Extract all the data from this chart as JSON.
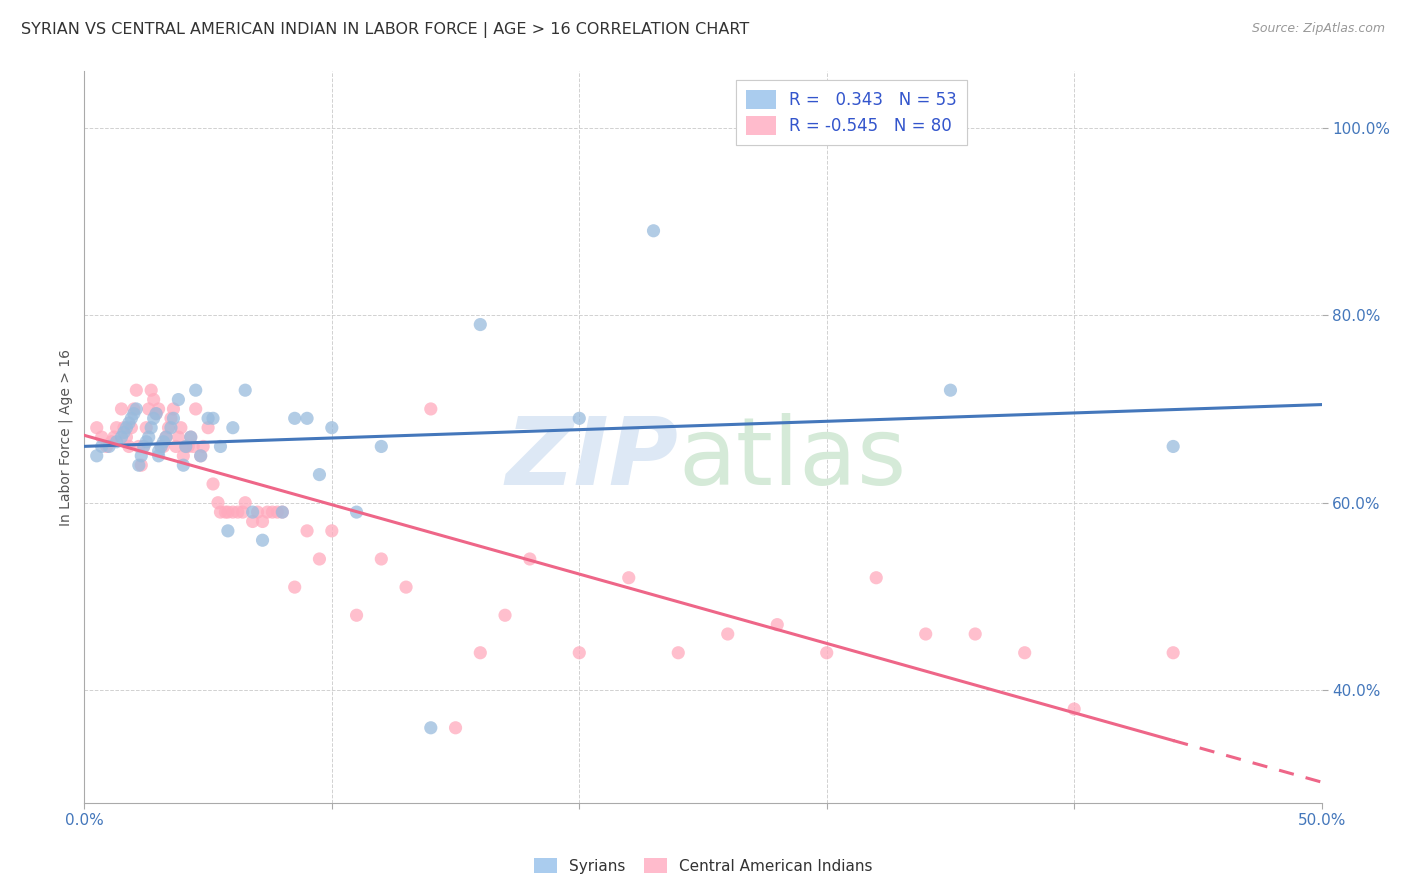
{
  "title": "SYRIAN VS CENTRAL AMERICAN INDIAN IN LABOR FORCE | AGE > 16 CORRELATION CHART",
  "source": "Source: ZipAtlas.com",
  "ylabel": "In Labor Force | Age > 16",
  "xlim": [
    0.0,
    0.5
  ],
  "ylim": [
    0.28,
    1.06
  ],
  "xticks": [
    0.0,
    0.1,
    0.2,
    0.3,
    0.4,
    0.5
  ],
  "yticks": [
    0.4,
    0.6,
    0.8,
    1.0
  ],
  "ytick_labels": [
    "40.0%",
    "60.0%",
    "80.0%",
    "100.0%"
  ],
  "r_syrian": 0.343,
  "n_syrian": 53,
  "r_central": -0.545,
  "n_central": 80,
  "blue_scatter_color": "#99BBDD",
  "pink_scatter_color": "#FFAABD",
  "blue_line_color": "#4477BB",
  "pink_line_color": "#EE6688",
  "legend_text_color": "#3355CC",
  "title_color": "#333333",
  "grid_color": "#CCCCCC",
  "background_color": "#FFFFFF",
  "syrian_x": [
    0.005,
    0.007,
    0.01,
    0.013,
    0.015,
    0.016,
    0.017,
    0.018,
    0.019,
    0.02,
    0.021,
    0.022,
    0.023,
    0.024,
    0.025,
    0.026,
    0.027,
    0.028,
    0.029,
    0.03,
    0.03,
    0.031,
    0.032,
    0.033,
    0.035,
    0.036,
    0.038,
    0.04,
    0.041,
    0.043,
    0.045,
    0.047,
    0.05,
    0.052,
    0.055,
    0.058,
    0.06,
    0.065,
    0.068,
    0.072,
    0.08,
    0.085,
    0.09,
    0.095,
    0.1,
    0.11,
    0.12,
    0.14,
    0.16,
    0.2,
    0.23,
    0.35,
    0.44
  ],
  "syrian_y": [
    0.65,
    0.66,
    0.66,
    0.665,
    0.67,
    0.675,
    0.68,
    0.685,
    0.69,
    0.695,
    0.7,
    0.64,
    0.65,
    0.66,
    0.665,
    0.67,
    0.68,
    0.69,
    0.695,
    0.65,
    0.655,
    0.66,
    0.665,
    0.67,
    0.68,
    0.69,
    0.71,
    0.64,
    0.66,
    0.67,
    0.72,
    0.65,
    0.69,
    0.69,
    0.66,
    0.57,
    0.68,
    0.72,
    0.59,
    0.56,
    0.59,
    0.69,
    0.69,
    0.63,
    0.68,
    0.59,
    0.66,
    0.36,
    0.79,
    0.69,
    0.89,
    0.72,
    0.66
  ],
  "central_x": [
    0.005,
    0.007,
    0.009,
    0.011,
    0.012,
    0.013,
    0.015,
    0.016,
    0.017,
    0.018,
    0.019,
    0.02,
    0.021,
    0.022,
    0.023,
    0.024,
    0.025,
    0.026,
    0.027,
    0.028,
    0.029,
    0.03,
    0.031,
    0.032,
    0.033,
    0.034,
    0.035,
    0.036,
    0.037,
    0.038,
    0.039,
    0.04,
    0.041,
    0.042,
    0.043,
    0.044,
    0.045,
    0.047,
    0.048,
    0.05,
    0.052,
    0.054,
    0.055,
    0.057,
    0.058,
    0.06,
    0.062,
    0.064,
    0.065,
    0.068,
    0.07,
    0.072,
    0.074,
    0.076,
    0.078,
    0.08,
    0.085,
    0.09,
    0.095,
    0.1,
    0.11,
    0.12,
    0.13,
    0.14,
    0.15,
    0.16,
    0.17,
    0.18,
    0.2,
    0.22,
    0.24,
    0.26,
    0.28,
    0.3,
    0.32,
    0.34,
    0.36,
    0.38,
    0.4,
    0.44
  ],
  "central_y": [
    0.68,
    0.67,
    0.66,
    0.665,
    0.67,
    0.68,
    0.7,
    0.68,
    0.67,
    0.66,
    0.68,
    0.7,
    0.72,
    0.66,
    0.64,
    0.66,
    0.68,
    0.7,
    0.72,
    0.71,
    0.695,
    0.7,
    0.66,
    0.66,
    0.67,
    0.68,
    0.69,
    0.7,
    0.66,
    0.67,
    0.68,
    0.65,
    0.66,
    0.66,
    0.67,
    0.66,
    0.7,
    0.65,
    0.66,
    0.68,
    0.62,
    0.6,
    0.59,
    0.59,
    0.59,
    0.59,
    0.59,
    0.59,
    0.6,
    0.58,
    0.59,
    0.58,
    0.59,
    0.59,
    0.59,
    0.59,
    0.51,
    0.57,
    0.54,
    0.57,
    0.48,
    0.54,
    0.51,
    0.7,
    0.36,
    0.44,
    0.48,
    0.54,
    0.44,
    0.52,
    0.44,
    0.46,
    0.47,
    0.44,
    0.52,
    0.46,
    0.46,
    0.44,
    0.38,
    0.44
  ]
}
